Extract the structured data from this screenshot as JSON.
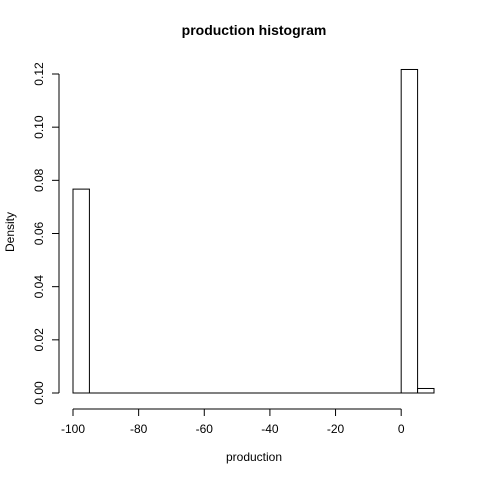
{
  "chart_data": {
    "type": "bar",
    "title": "production  histogram",
    "xlabel": "production",
    "ylabel": "Density",
    "bins": [
      {
        "x0": -100,
        "x1": -95,
        "density": 0.0767
      },
      {
        "x0": -95,
        "x1": 0,
        "density": 0
      },
      {
        "x0": 0,
        "x1": 5,
        "density": 0.1217
      },
      {
        "x0": 5,
        "x1": 10,
        "density": 0.0017
      }
    ],
    "xticks": [
      -100,
      -80,
      -60,
      -40,
      -20,
      0
    ],
    "yticks": [
      0.0,
      0.02,
      0.04,
      0.06,
      0.08,
      0.1,
      0.12
    ],
    "ytick_labels": [
      "0.00",
      "0.02",
      "0.04",
      "0.06",
      "0.08",
      "0.10",
      "0.12"
    ],
    "xlim": [
      -100,
      10
    ],
    "ylim": [
      0,
      0.12
    ],
    "grid": false,
    "legend": "none"
  }
}
